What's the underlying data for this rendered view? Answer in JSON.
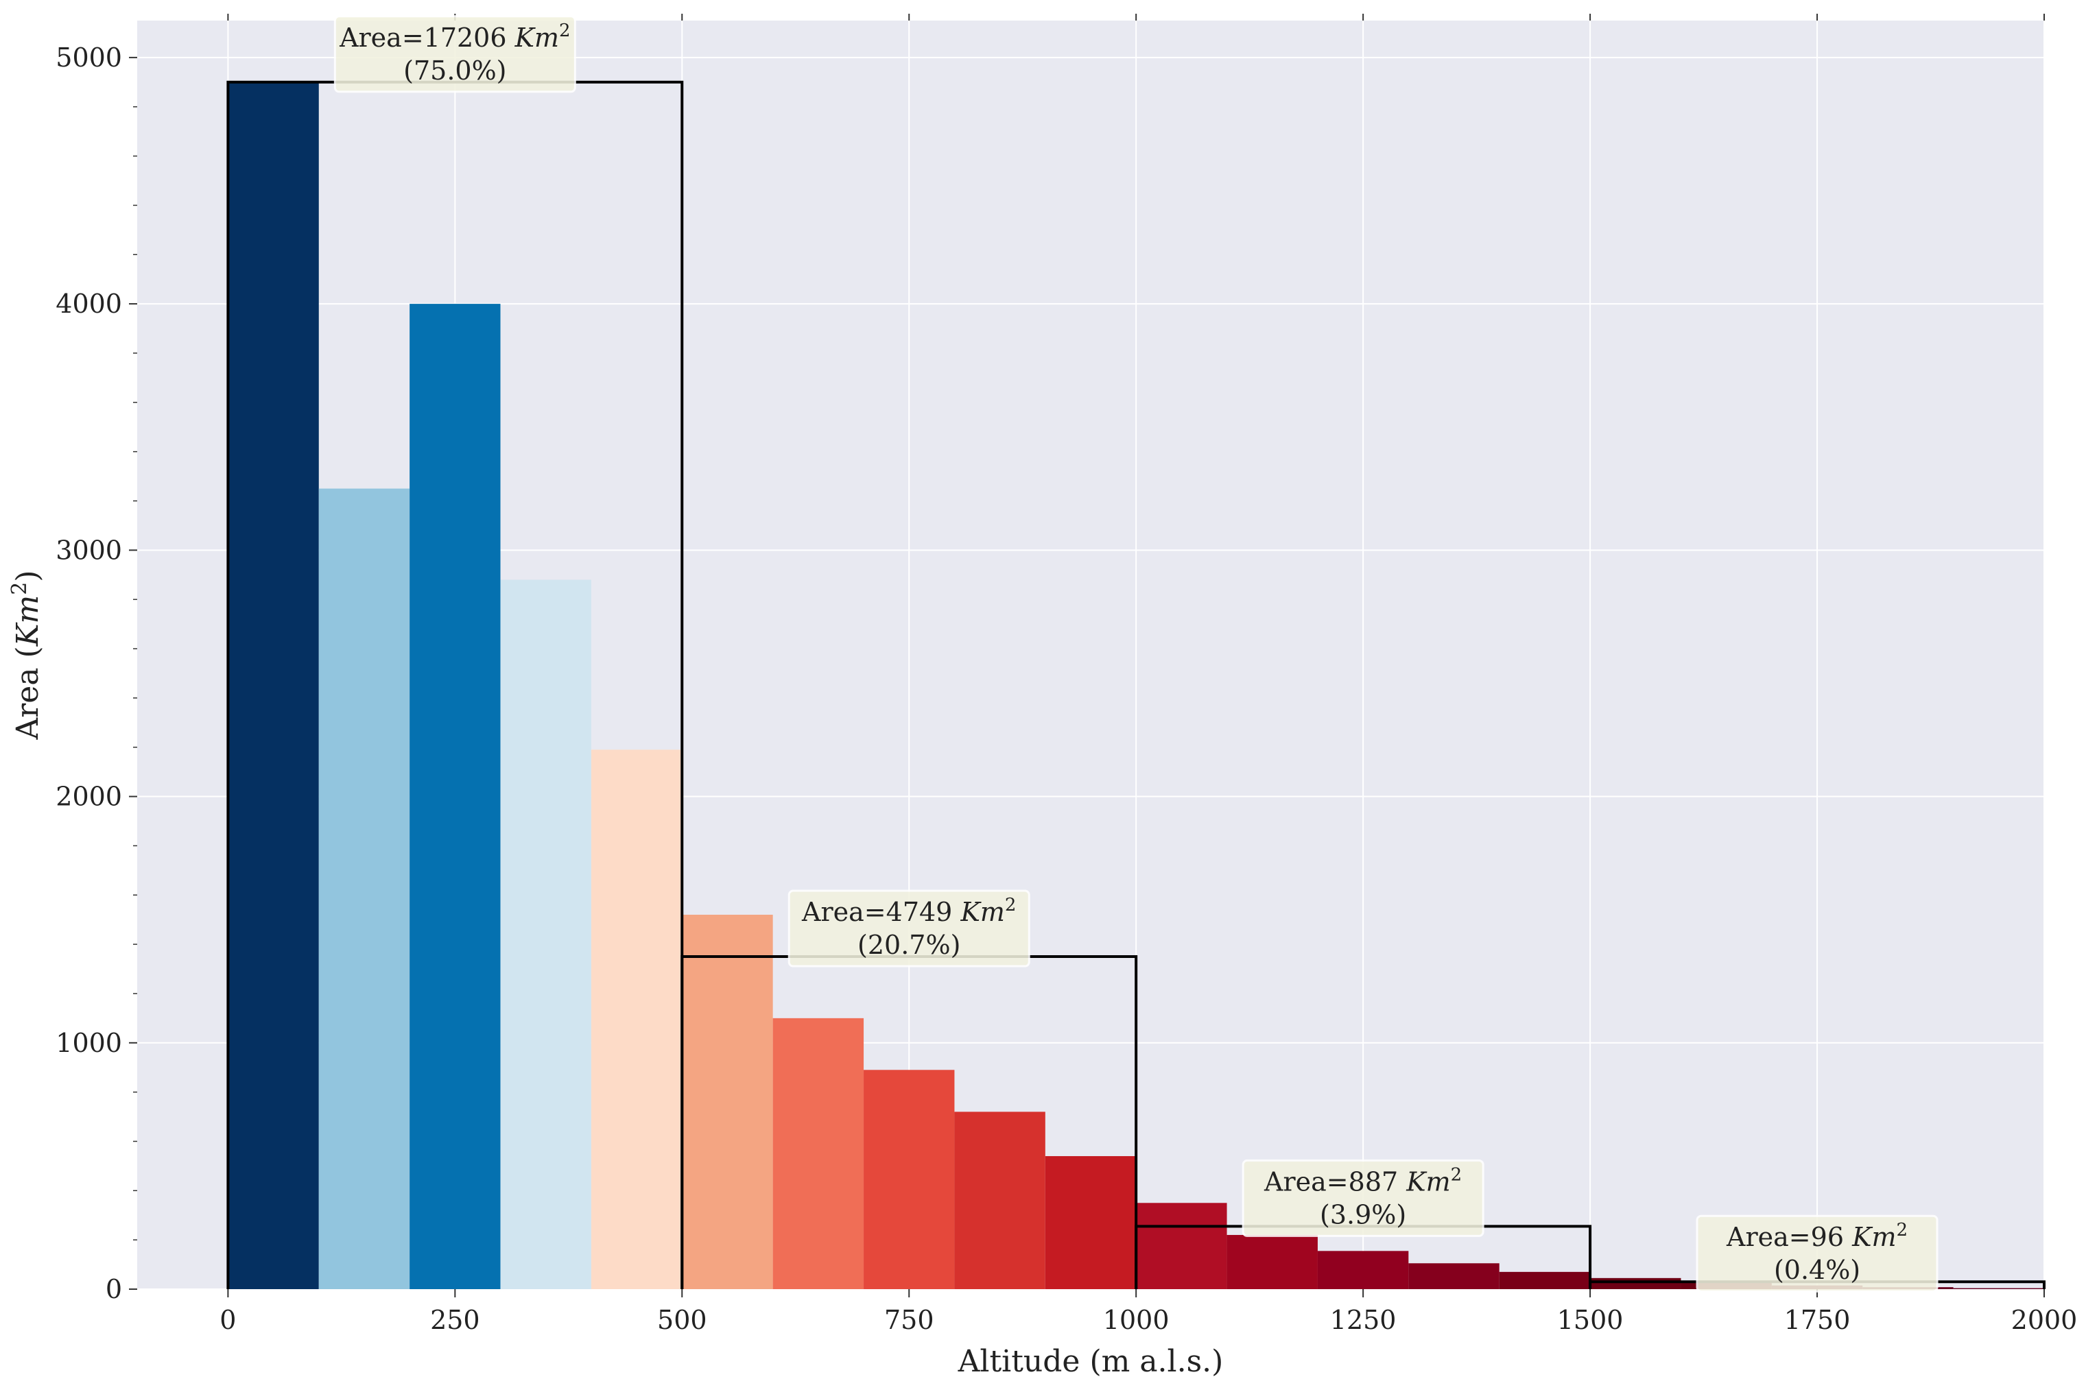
{
  "chart_data": {
    "type": "bar",
    "title": "",
    "xlabel": "Altitude (m a.l.s.)",
    "ylabel_main": "Area (",
    "ylabel_var": "Km",
    "ylabel_sup": "2",
    "ylabel_close": ")",
    "xlim": [
      -100,
      2000
    ],
    "ylim": [
      0,
      5150
    ],
    "x_ticks": [
      0,
      250,
      500,
      750,
      1000,
      1250,
      1500,
      1750,
      2000
    ],
    "x_tick_labels": [
      "0",
      "250",
      "500",
      "750",
      "1000",
      "1250",
      "1500",
      "1750",
      "2000"
    ],
    "y_ticks": [
      0,
      1000,
      2000,
      3000,
      4000,
      5000
    ],
    "y_tick_labels": [
      "0",
      "1000",
      "2000",
      "3000",
      "4000",
      "5000"
    ],
    "grid": true,
    "bin_width": 100,
    "bins": [
      {
        "x0": 0,
        "value": 4900,
        "color": "#053061"
      },
      {
        "x0": 100,
        "value": 3250,
        "color": "#92c5de"
      },
      {
        "x0": 200,
        "value": 4000,
        "color": "#0571b0"
      },
      {
        "x0": 300,
        "value": 2880,
        "color": "#d1e5f0"
      },
      {
        "x0": 400,
        "value": 2190,
        "color": "#fddbc7"
      },
      {
        "x0": 500,
        "value": 1520,
        "color": "#f4a582"
      },
      {
        "x0": 600,
        "value": 1100,
        "color": "#f06e56"
      },
      {
        "x0": 700,
        "value": 890,
        "color": "#e5483b"
      },
      {
        "x0": 800,
        "value": 720,
        "color": "#d6312d"
      },
      {
        "x0": 900,
        "value": 540,
        "color": "#c51b22"
      },
      {
        "x0": 1000,
        "value": 350,
        "color": "#b00e25"
      },
      {
        "x0": 1100,
        "value": 220,
        "color": "#a0051f"
      },
      {
        "x0": 1200,
        "value": 155,
        "color": "#91001f"
      },
      {
        "x0": 1300,
        "value": 105,
        "color": "#85001d"
      },
      {
        "x0": 1400,
        "value": 70,
        "color": "#790017"
      },
      {
        "x0": 1500,
        "value": 45,
        "color": "#6d0014"
      },
      {
        "x0": 1600,
        "value": 25,
        "color": "#6a0012"
      },
      {
        "x0": 1700,
        "value": 15,
        "color": "#67001f"
      },
      {
        "x0": 1800,
        "value": 8,
        "color": "#67001f"
      },
      {
        "x0": 1900,
        "value": 4,
        "color": "#67001f"
      }
    ],
    "groups": [
      {
        "x0": 0,
        "x1": 500,
        "mean": 4900,
        "label_line1": "Area=17206",
        "unit_var": "Km",
        "unit_sup": "2",
        "label_line2": "(75.0%)",
        "anchor_x": 250
      },
      {
        "x0": 500,
        "x1": 1000,
        "mean": 1350,
        "label_line1": "Area=4749",
        "unit_var": "Km",
        "unit_sup": "2",
        "label_line2": "(20.7%)",
        "anchor_x": 750
      },
      {
        "x0": 1000,
        "x1": 1500,
        "mean": 255,
        "label_line1": "Area=887",
        "unit_var": "Km",
        "unit_sup": "2",
        "label_line2": "(3.9%)",
        "anchor_x": 1250
      },
      {
        "x0": 1500,
        "x1": 2000,
        "mean": 30,
        "label_line1": "Area=96",
        "unit_var": "Km",
        "unit_sup": "2",
        "label_line2": "(0.4%)",
        "anchor_x": 1750
      }
    ],
    "colors": {
      "background": "#e8e9f1",
      "grid": "#ffffff",
      "group_outline": "#000000",
      "annotation_fill": "#f2f2df",
      "annotation_border": "#ffffff"
    }
  }
}
